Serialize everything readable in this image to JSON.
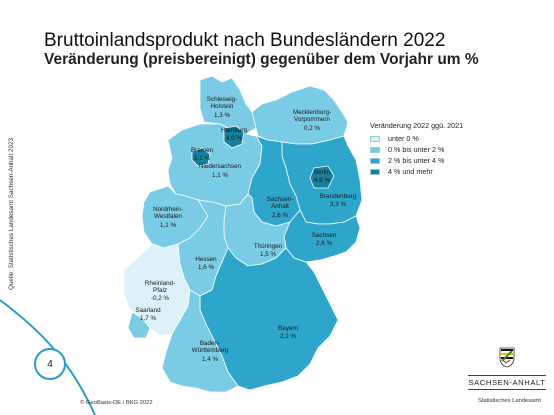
{
  "title": "Bruttoinlandsprodukt nach Bundesländern 2022",
  "subtitle": "Veränderung (preisbereinigt) gegenüber dem Vorjahr um %",
  "source": "Quelle: Statistisches Landesamt Sachsen-Anhalt 2023",
  "legend": {
    "title": "Veränderung 2022 ggü. 2021",
    "items": [
      {
        "label": "unter 0 %",
        "color": "#dcf1f8"
      },
      {
        "label": "0 % bis unter 2 %",
        "color": "#79cbe6"
      },
      {
        "label": "2 % bis unter 4 %",
        "color": "#2ea6cc"
      },
      {
        "label": "4 % und mehr",
        "color": "#15809f"
      }
    ]
  },
  "states": [
    {
      "name": "Schleswig-Holstein",
      "label1": "Schleswig-",
      "label2": "Holstein",
      "value": "1,3 %",
      "class": 1
    },
    {
      "name": "Hamburg",
      "label1": "Hamburg",
      "label2": "",
      "value": "4,0 %",
      "class": 3
    },
    {
      "name": "Mecklenburg-Vorpommern",
      "label1": "Mecklenburg-",
      "label2": "Vorpommern",
      "value": "0,2 %",
      "class": 1
    },
    {
      "name": "Bremen",
      "label1": "Bremen",
      "label2": "",
      "value": "5,1 %",
      "class": 3
    },
    {
      "name": "Niedersachsen",
      "label1": "Niedersachsen",
      "label2": "",
      "value": "1,1 %",
      "class": 1
    },
    {
      "name": "Berlin",
      "label1": "Berlin",
      "label2": "",
      "value": "4,9 %",
      "class": 3
    },
    {
      "name": "Brandenburg",
      "label1": "Brandenburg",
      "label2": "",
      "value": "3,3 %",
      "class": 2
    },
    {
      "name": "Sachsen-Anhalt",
      "label1": "Sachsen-",
      "label2": "Anhalt",
      "value": "2,6 %",
      "class": 2
    },
    {
      "name": "Nordrhein-Westfalen",
      "label1": "Nordrhein-",
      "label2": "Westfalen",
      "value": "1,1 %",
      "class": 1
    },
    {
      "name": "Sachsen",
      "label1": "Sachsen",
      "label2": "",
      "value": "2,6 %",
      "class": 2
    },
    {
      "name": "Thüringen",
      "label1": "Thüringen",
      "label2": "",
      "value": "1,5 %",
      "class": 1
    },
    {
      "name": "Hessen",
      "label1": "Hessen",
      "label2": "",
      "value": "1,6 %",
      "class": 1
    },
    {
      "name": "Rheinland-Pfalz",
      "label1": "Rheinland-",
      "label2": "Pfalz",
      "value": "-0,2 %",
      "class": 0
    },
    {
      "name": "Saarland",
      "label1": "Saarland",
      "label2": "",
      "value": "1,7 %",
      "class": 1
    },
    {
      "name": "Bayern",
      "label1": "Bayern",
      "label2": "",
      "value": "2,1 %",
      "class": 2
    },
    {
      "name": "Baden-Württemberg",
      "label1": "Baden-",
      "label2": "Württemberg",
      "value": "1,4 %",
      "class": 1
    }
  ],
  "copyright": "© GeoBasis-DE / BKG 2022",
  "page_number": "4",
  "logo": {
    "name": "SACHSEN-ANHALT",
    "subtitle": "Statistisches Landesamt"
  }
}
